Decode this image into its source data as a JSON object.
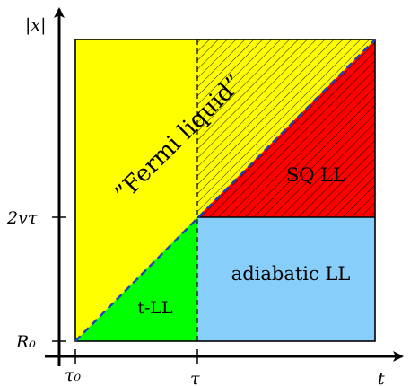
{
  "axes": {
    "y_label": "|x|",
    "x_label": "t",
    "y_ticks": [
      "2vτ",
      "R₀"
    ],
    "x_ticks": [
      "τ₀",
      "τ"
    ]
  },
  "regions": [
    {
      "id": "fermi-liquid",
      "label": "”Fermi liquid”",
      "color": "#ffff00",
      "hatched": "partial"
    },
    {
      "id": "sq-ll",
      "label": "SQ LL",
      "color": "#ff0000",
      "hatched": "yes"
    },
    {
      "id": "adiabatic-ll",
      "label": "adiabatic LL",
      "color": "#87cefa",
      "hatched": "no"
    },
    {
      "id": "t-ll",
      "label": "t-LL",
      "color": "#00ff00",
      "hatched": "no"
    }
  ],
  "boundary_style": {
    "diagonal_color": "#1f3fbf",
    "dashed": "yes"
  }
}
